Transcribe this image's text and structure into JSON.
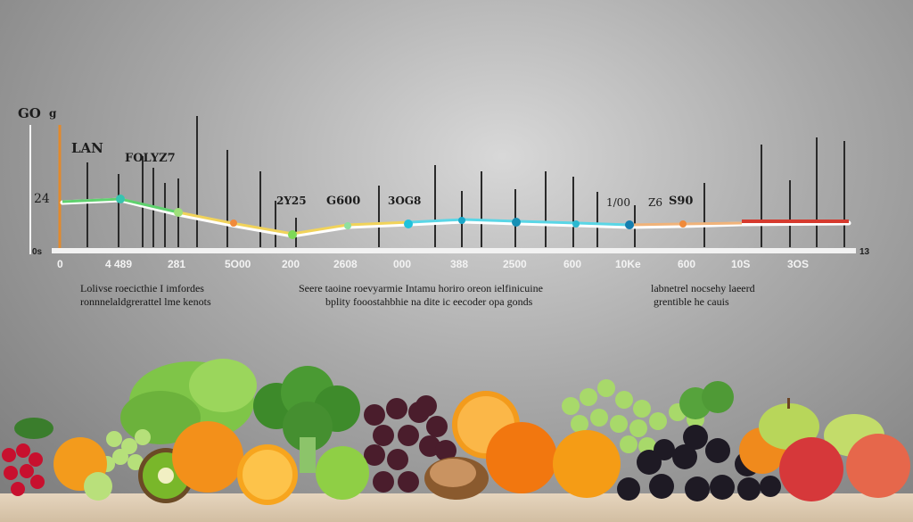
{
  "chart": {
    "corner_label": "GO",
    "corner_unit": "g",
    "label_a": "LAN",
    "label_b": "FOLYZ7",
    "y_value": "24",
    "y_zero": "0s",
    "right_end": "13",
    "annotations": [
      "2Y25",
      "G600",
      "3OG8",
      "1/00",
      "Z6",
      "S90"
    ],
    "x_ticks": [
      "0",
      "4 489",
      "281",
      "5O00",
      "200",
      "2608",
      "000",
      "388",
      "2500",
      "600",
      "10Ke",
      "600",
      "10S",
      "3OS"
    ]
  },
  "captions": {
    "left": [
      "Lolivse roecicthie I imfordes",
      "ronnnelaldgrerattel lme kenots"
    ],
    "center": [
      "Seere taoine roevyarmie Intamu horiro oreon ielfinicuine",
      "bplity fooostahbhie na dite ic eecoder opa gonds"
    ],
    "right": [
      "labnetrel nocsehy laeerd",
      "grentible he cauis"
    ]
  },
  "colors": {
    "line_green": "#5fd16e",
    "line_yellow": "#f1d35a",
    "line_blue": "#5ad6e6",
    "line_red": "#d63a2e",
    "axis_orange": "#e28a2c"
  },
  "produce": [
    "grapes",
    "lettuce",
    "broccoli",
    "oranges",
    "kiwi",
    "apple",
    "walnuts",
    "blackberries",
    "pears",
    "peaches"
  ]
}
